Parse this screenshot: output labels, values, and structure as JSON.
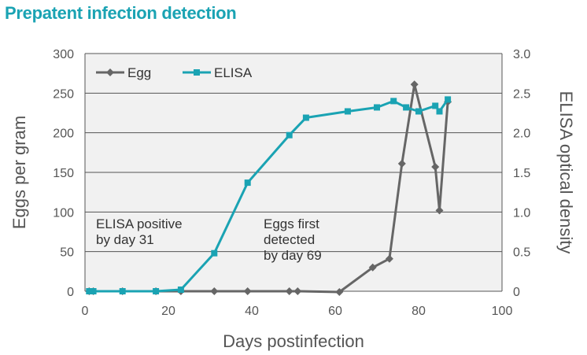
{
  "title": "Prepatent infection detection",
  "chart_data": {
    "type": "line",
    "xlabel": "Days postinfection",
    "ylabel_left": "Eggs per gram",
    "ylabel_right": "ELISA optical density",
    "xlim": [
      0,
      100
    ],
    "ylim_left": [
      0,
      300
    ],
    "ylim_right": [
      0,
      3.0
    ],
    "x_ticks": [
      "0",
      "20",
      "40",
      "60",
      "80",
      "100"
    ],
    "y_left_ticks": [
      "0",
      "50",
      "100",
      "150",
      "200",
      "250",
      "300"
    ],
    "y_right_ticks": [
      "0",
      "0.5",
      "1.0",
      "1.5",
      "2.0",
      "2.5",
      "3.0"
    ],
    "grid": true,
    "legend_position": "top-left",
    "series": [
      {
        "name": "Egg",
        "axis": "left",
        "color": "#666666",
        "marker": "diamond",
        "x": [
          1,
          2,
          9,
          17,
          23,
          31,
          39,
          49,
          51,
          61,
          69,
          73,
          76,
          79,
          84,
          85,
          87
        ],
        "y": [
          0,
          0,
          0,
          0,
          0,
          0,
          0,
          0,
          0,
          -1,
          30,
          41,
          161,
          261,
          157,
          102,
          239
        ]
      },
      {
        "name": "ELISA",
        "axis": "right",
        "color": "#1aa3b3",
        "marker": "square",
        "x": [
          1,
          2,
          9,
          17,
          23,
          31,
          39,
          49,
          53,
          63,
          70,
          74,
          77,
          80,
          84,
          85,
          87
        ],
        "y": [
          0,
          0,
          0,
          0,
          0.02,
          0.48,
          1.37,
          1.97,
          2.19,
          2.27,
          2.32,
          2.4,
          2.32,
          2.27,
          2.34,
          2.27,
          2.42
        ]
      }
    ],
    "annotations": [
      {
        "id": "elisa-positive",
        "lines": [
          "ELISA positive",
          "by day 31"
        ]
      },
      {
        "id": "eggs-first",
        "lines": [
          "Eggs first",
          "detected",
          "by day 69"
        ]
      }
    ]
  }
}
